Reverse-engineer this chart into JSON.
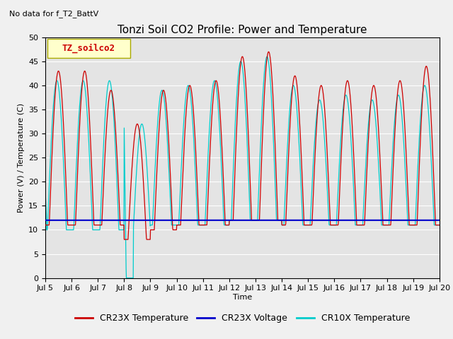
{
  "title": "Tonzi Soil CO2 Profile: Power and Temperature",
  "subtitle": "No data for f_T2_BattV",
  "ylabel": "Power (V) / Temperature (C)",
  "xlabel": "Time",
  "ylim": [
    0,
    50
  ],
  "xlim": [
    0,
    15
  ],
  "fig_bg_color": "#f0f0f0",
  "plot_bg_color": "#e8e8e8",
  "legend_label": "TZ_soilco2",
  "legend_entries": [
    "CR23X Temperature",
    "CR23X Voltage",
    "CR10X Temperature"
  ],
  "legend_colors": [
    "#cc0000",
    "#0000bb",
    "#00cccc"
  ],
  "xtick_labels": [
    "Jul 5",
    "Jul 6",
    "Jul 7",
    "Jul 8",
    "Jul 9",
    "Jul 10",
    "Jul 11",
    "Jul 12",
    "Jul 13",
    "Jul 14",
    "Jul 15",
    "Jul 16",
    "Jul 17",
    "Jul 18",
    "Jul 19",
    "Jul 20"
  ],
  "ytick_values": [
    0,
    5,
    10,
    15,
    20,
    25,
    30,
    35,
    40,
    45,
    50
  ],
  "grid_color": "#ffffff",
  "voltage_value": 12.0,
  "title_fontsize": 11,
  "axis_fontsize": 8,
  "tick_fontsize": 8
}
